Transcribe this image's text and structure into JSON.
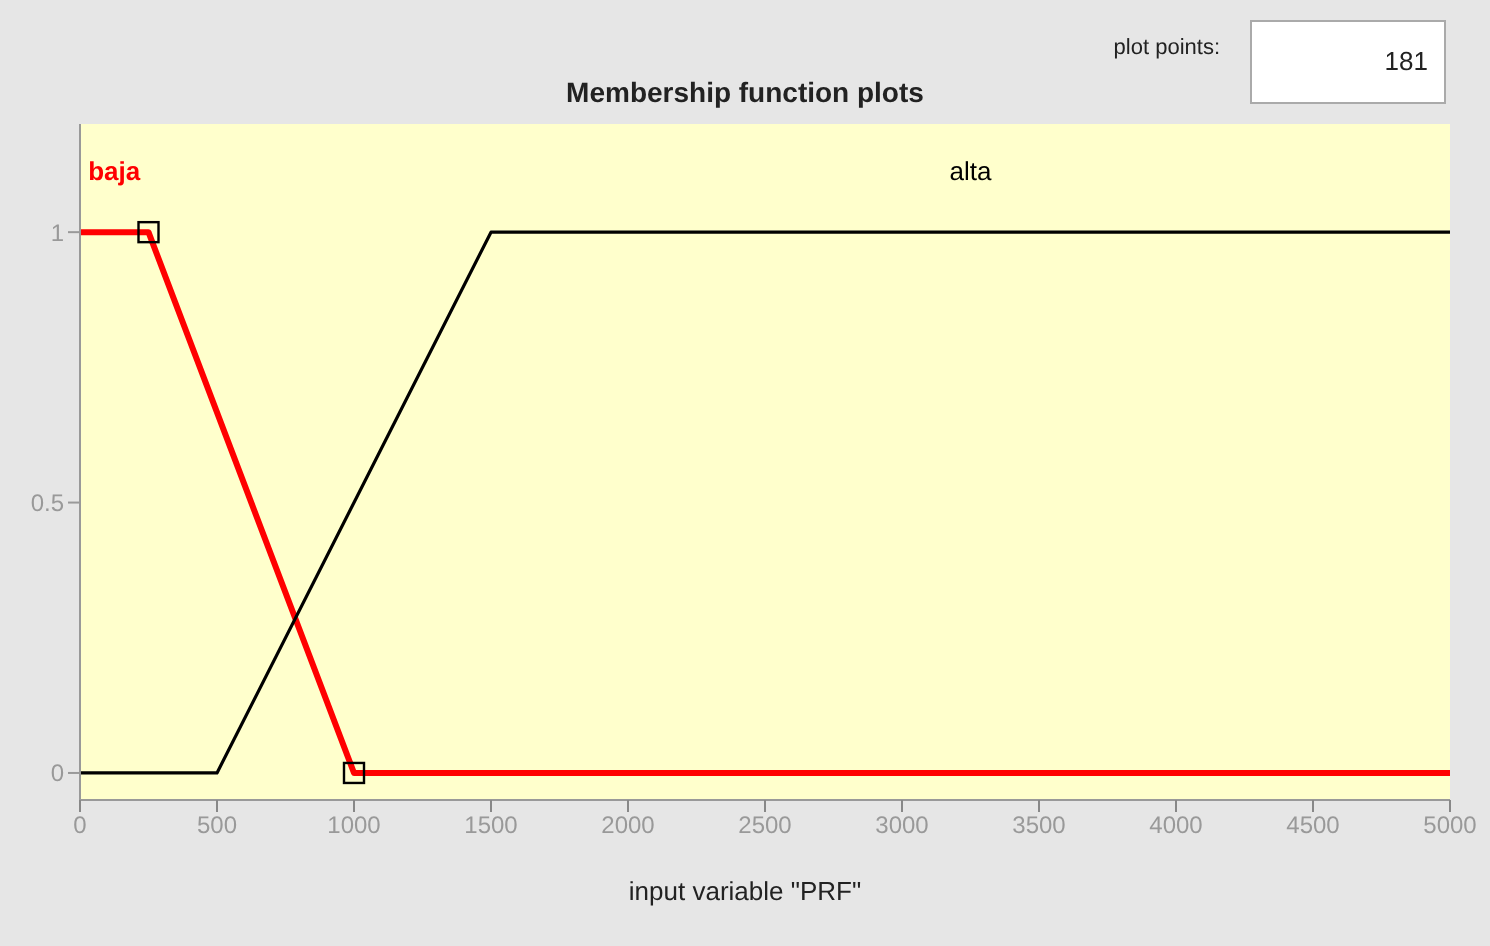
{
  "chart_data": {
    "type": "line",
    "title": "Membership function plots",
    "xlabel": "input variable \"PRF\"",
    "annotations": [
      "plot points:",
      "181"
    ],
    "series": [
      {
        "name": "baja",
        "color": "#ff0000",
        "x": [
          0,
          250,
          1000,
          5000
        ],
        "values": [
          1,
          1,
          0,
          0
        ]
      },
      {
        "name": "alta",
        "color": "#000000",
        "x": [
          0,
          500,
          1500,
          5000
        ],
        "values": [
          0,
          0,
          1,
          1
        ]
      },
      {
        "type": "scatter",
        "color": "#000000",
        "marker": "square",
        "x": [
          250,
          1000
        ],
        "values": [
          1,
          0
        ]
      }
    ],
    "xlim": [
      0,
      5000
    ],
    "xticks": [
      0,
      500,
      1000,
      1500,
      2000,
      2500,
      3000,
      3500,
      4000,
      4500,
      5000
    ],
    "ylim": [
      -0.05,
      1.2
    ],
    "yticks": [
      0,
      0.5,
      1
    ],
    "grid": false,
    "legend": false,
    "marker": "none",
    "line_style": "solid"
  }
}
